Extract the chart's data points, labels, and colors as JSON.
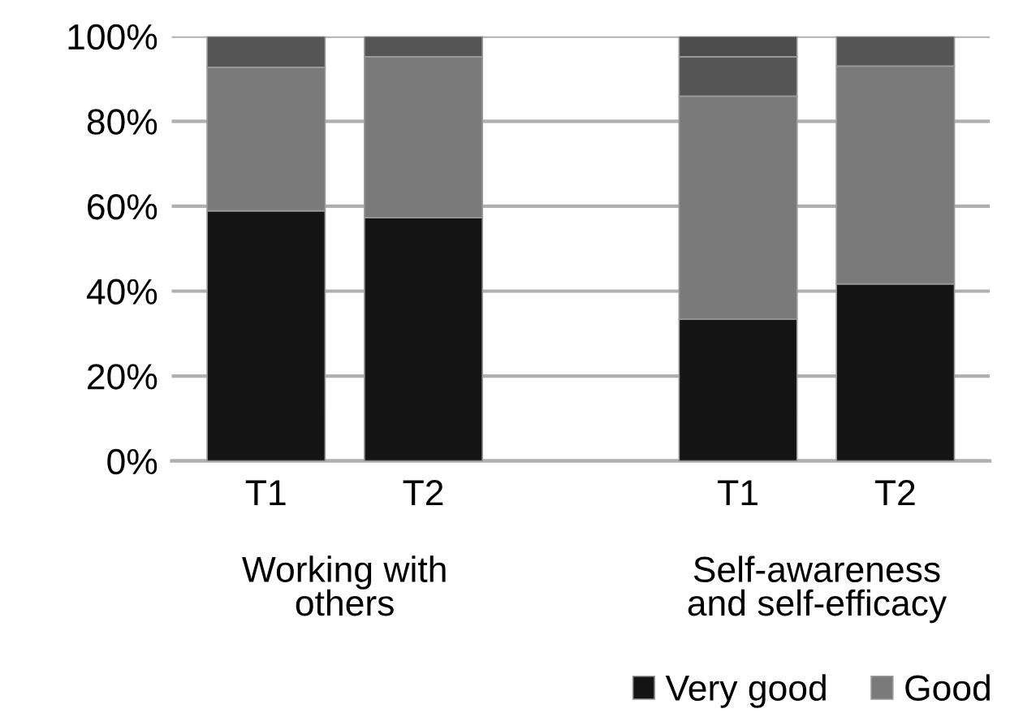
{
  "chart_data": {
    "type": "bar",
    "stacked": true,
    "categories": [
      "T1",
      "T2",
      null,
      "T1",
      "T2"
    ],
    "series": [
      {
        "name": "Very good",
        "color": "#141414",
        "values": [
          58.9,
          57.3,
          null,
          33.4,
          41.7
        ]
      },
      {
        "name": "Good",
        "color": "#7a7a7a",
        "values": [
          33.8,
          37.9,
          null,
          52.5,
          51.3
        ]
      },
      {
        "color": "#555555",
        "values": [
          7.3,
          4.8,
          null,
          9.3,
          7.0
        ]
      },
      {
        "color": "#4d4d4d",
        "values": [
          null,
          null,
          null,
          4.8,
          null
        ]
      }
    ],
    "ylim": [
      0,
      100
    ],
    "yticks": [
      {
        "value": 0,
        "label": "0%"
      },
      {
        "value": 20,
        "label": "20%"
      },
      {
        "value": 40,
        "label": "40%"
      },
      {
        "value": 60,
        "label": "60%"
      },
      {
        "value": 80,
        "label": "80%"
      },
      {
        "value": 100,
        "label": "100%"
      }
    ],
    "grid": "y",
    "legend": "bottom right",
    "annotations": [
      "Working with\nothers",
      "Self-awareness\nand self-efficacy"
    ]
  }
}
